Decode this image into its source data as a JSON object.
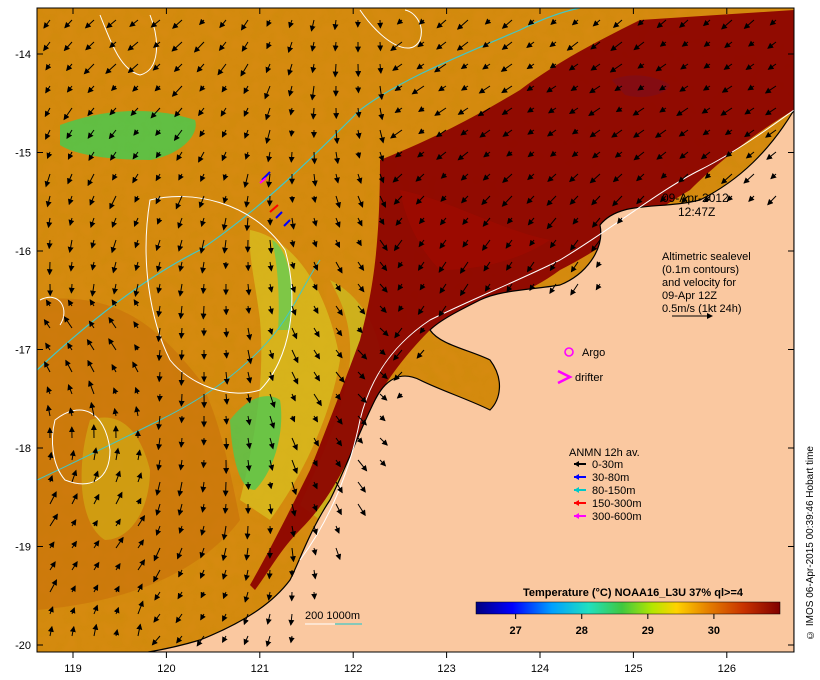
{
  "map": {
    "date_line": "09-Apr-2012",
    "time_line": "12:47Z",
    "altimetry_lines": [
      "Altimetric sealevel",
      "(0.1m contours)",
      "and velocity for",
      "09-Apr 12Z",
      "0.5m/s (1kt 24h)"
    ],
    "argo_label": "Argo",
    "drifter_label": "drifter",
    "anmn_title": "ANMN 12h av.",
    "anmn_legend": [
      {
        "label": "0-30m",
        "color": "#000000"
      },
      {
        "label": "30-80m",
        "color": "#0000ff"
      },
      {
        "label": "80-150m",
        "color": "#00c8c8"
      },
      {
        "label": "150-300m",
        "color": "#ff0000"
      },
      {
        "label": "300-600m",
        "color": "#ff00ff"
      }
    ],
    "colorbar_title": "Temperature (°C) NOAA16_L3U 37% ql>=4",
    "colorbar_ticks": [
      "27",
      "28",
      "29",
      "30"
    ],
    "colorbar_ticks_values": [
      27,
      28,
      29,
      30
    ],
    "colorbar_range": [
      26.4,
      31.0
    ],
    "isobath_label": "200  1000m",
    "credit": "© IMOS 06-Apr-2015 00:39:46 Hobart time",
    "lon_ticks": [
      "119",
      "120",
      "121",
      "122",
      "123",
      "124",
      "125",
      "126"
    ],
    "lat_ticks": [
      "-14",
      "-15",
      "-16",
      "-17",
      "-18",
      "-19",
      "-20"
    ],
    "colors": {
      "land": "#fac8a0",
      "sst_hot": "#8b0000",
      "sst_warm": "#d2780a",
      "sst_cool": "#46c846",
      "isobath_200": "#ffffff",
      "isobath_1000": "#40c8c8",
      "argo": "#ff00ff"
    }
  }
}
